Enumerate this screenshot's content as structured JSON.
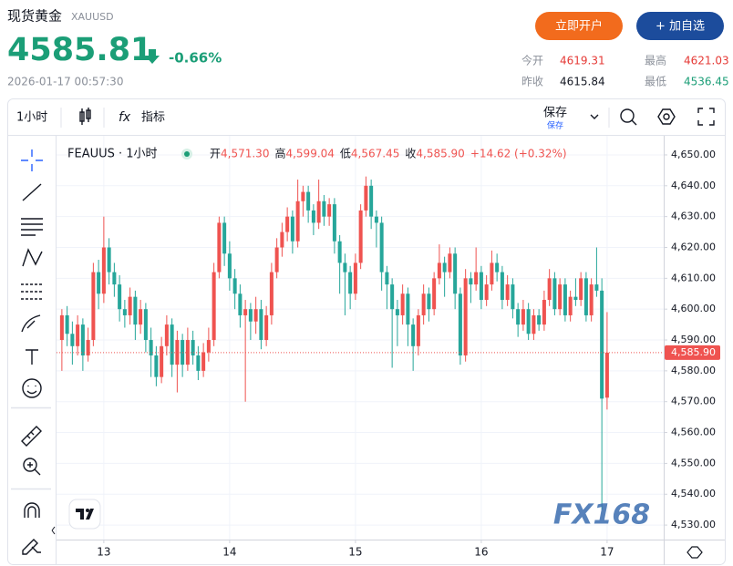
{
  "header": {
    "title": "现货黄金",
    "code": "XAUUSD",
    "price": "4585.81",
    "change": "-0.66%",
    "datetime": "2026-01-17 00:57:30",
    "open_account": "立即开户",
    "add_watch": "+ 加自选",
    "stats": [
      {
        "label": "今开",
        "value": "4619.31"
      },
      {
        "label": "最高",
        "value": "4621.03"
      },
      {
        "label": "昨收",
        "value": "4615.84"
      },
      {
        "label": "最低",
        "value": "4536.45"
      }
    ]
  },
  "toolbar": {
    "interval": "1小时",
    "indicators": "指标",
    "save": "保存",
    "save_sub": "保存"
  },
  "chart_data": {
    "type": "candlestick",
    "legend": {
      "symbol": "FEAUUS · 1小时",
      "items": [
        {
          "label": "开",
          "value": "4,571.30"
        },
        {
          "label": "高",
          "value": "4,599.04"
        },
        {
          "label": "低",
          "value": "4,567.45"
        },
        {
          "label": "收",
          "value": "4,585.90"
        }
      ],
      "change": "+14.62 (+0.32%)"
    },
    "up_color": "#ef5350",
    "down_color": "#26a69a",
    "x": [
      -8,
      -7,
      -6,
      -5,
      -4,
      -3,
      -2,
      -1,
      0,
      1,
      2,
      3,
      4,
      5,
      6,
      7,
      8,
      9,
      10,
      11,
      12,
      13,
      14,
      15,
      16,
      17,
      18,
      19,
      20,
      21,
      22,
      23,
      24,
      25,
      26,
      27,
      28,
      29,
      30,
      31,
      32,
      33,
      34,
      35,
      36,
      37,
      38,
      39,
      40,
      41,
      42,
      43,
      44,
      45,
      46,
      47,
      48,
      49,
      50,
      51,
      52,
      53,
      54,
      55,
      56,
      57,
      58,
      59,
      60,
      61,
      62,
      63,
      64,
      65,
      66,
      67,
      68,
      69,
      70,
      71,
      72,
      73,
      74,
      75,
      76,
      77,
      78,
      79,
      80,
      81,
      82,
      83,
      84,
      85,
      86,
      87,
      88,
      89,
      90,
      91,
      92,
      93,
      94,
      95,
      96
    ],
    "open": [
      4590,
      4598,
      4592,
      4588,
      4595,
      4585,
      4590,
      4612,
      4605,
      4620,
      4612,
      4608,
      4600,
      4598,
      4604,
      4595,
      4600,
      4590,
      4585,
      4578,
      4588,
      4595,
      4582,
      4590,
      4582,
      4590,
      4585,
      4580,
      4586,
      4590,
      4612,
      4628,
      4618,
      4610,
      4605,
      4598,
      4600,
      4596,
      4600,
      4590,
      4598,
      4612,
      4620,
      4625,
      4630,
      4622,
      4635,
      4638,
      4632,
      4628,
      4635,
      4630,
      4634,
      4622,
      4615,
      4612,
      4605,
      4615,
      4632,
      4640,
      4630,
      4628,
      4612,
      4608,
      4600,
      4598,
      4605,
      4595,
      4588,
      4598,
      4605,
      4600,
      4610,
      4615,
      4612,
      4618,
      4605,
      4585,
      4610,
      4608,
      4612,
      4603,
      4608,
      4615,
      4612,
      4603,
      4608,
      4600,
      4595,
      4600,
      4592,
      4598,
      4595,
      4603,
      4610,
      4600,
      4608,
      4598,
      4604,
      4603,
      4610,
      4598,
      4608,
      4606,
      4571.3
    ],
    "high": [
      4600,
      4601,
      4596,
      4598,
      4597,
      4594,
      4615,
      4616,
      4630,
      4623,
      4615,
      4611,
      4603,
      4607,
      4606,
      4603,
      4602,
      4594,
      4588,
      4591,
      4598,
      4597,
      4593,
      4592,
      4594,
      4593,
      4588,
      4589,
      4594,
      4615,
      4630,
      4630,
      4622,
      4613,
      4608,
      4603,
      4602,
      4604,
      4603,
      4601,
      4615,
      4623,
      4628,
      4633,
      4632,
      4642,
      4640,
      4640,
      4634,
      4642,
      4637,
      4636,
      4636,
      4624,
      4618,
      4614,
      4618,
      4634,
      4643,
      4642,
      4632,
      4630,
      4614,
      4610,
      4603,
      4608,
      4607,
      4597,
      4600,
      4608,
      4607,
      4612,
      4621,
      4617,
      4620,
      4620,
      4607,
      4613,
      4612,
      4620,
      4614,
      4611,
      4619,
      4618,
      4614,
      4611,
      4610,
      4602,
      4603,
      4602,
      4600,
      4600,
      4606,
      4613,
      4612,
      4610,
      4610,
      4606,
      4610,
      4612,
      4612,
      4610,
      4620,
      4610,
      4599.04
    ],
    "low": [
      4580,
      4588,
      4582,
      4585,
      4580,
      4583,
      4588,
      4600,
      4602,
      4608,
      4604,
      4596,
      4594,
      4595,
      4590,
      4592,
      4586,
      4578,
      4575,
      4576,
      4585,
      4578,
      4573,
      4578,
      4580,
      4582,
      4577,
      4578,
      4583,
      4588,
      4610,
      4614,
      4606,
      4600,
      4594,
      4570,
      4590,
      4592,
      4587,
      4588,
      4595,
      4610,
      4617,
      4622,
      4618,
      4620,
      4630,
      4628,
      4624,
      4626,
      4627,
      4627,
      4618,
      4605,
      4598,
      4600,
      4603,
      4613,
      4630,
      4626,
      4620,
      4606,
      4600,
      4581,
      4588,
      4595,
      4588,
      4580,
      4585,
      4595,
      4596,
      4598,
      4608,
      4604,
      4610,
      4600,
      4582,
      4583,
      4602,
      4606,
      4600,
      4601,
      4606,
      4609,
      4600,
      4601,
      4597,
      4591,
      4593,
      4590,
      4590,
      4593,
      4593,
      4601,
      4598,
      4598,
      4596,
      4596,
      4601,
      4601,
      4596,
      4596,
      4604,
      4535,
      4567.45
    ],
    "close": [
      4598,
      4592,
      4588,
      4595,
      4585,
      4590,
      4612,
      4605,
      4620,
      4612,
      4608,
      4600,
      4598,
      4604,
      4595,
      4600,
      4590,
      4585,
      4578,
      4588,
      4595,
      4582,
      4590,
      4582,
      4590,
      4585,
      4580,
      4586,
      4590,
      4612,
      4628,
      4618,
      4610,
      4605,
      4598,
      4600,
      4596,
      4600,
      4590,
      4598,
      4612,
      4620,
      4625,
      4630,
      4622,
      4635,
      4638,
      4632,
      4628,
      4635,
      4630,
      4634,
      4622,
      4615,
      4612,
      4605,
      4615,
      4632,
      4640,
      4630,
      4628,
      4612,
      4608,
      4600,
      4598,
      4605,
      4595,
      4588,
      4598,
      4605,
      4600,
      4610,
      4615,
      4612,
      4618,
      4605,
      4585,
      4610,
      4608,
      4612,
      4603,
      4608,
      4615,
      4612,
      4603,
      4608,
      4600,
      4595,
      4600,
      4592,
      4598,
      4595,
      4603,
      4610,
      4600,
      4608,
      4598,
      4604,
      4603,
      4610,
      4598,
      4608,
      4606,
      4571,
      4585.9
    ],
    "xlim": [
      -8.5,
      106.8
    ],
    "xticks": [
      {
        "value": 0,
        "label": "13"
      },
      {
        "value": 24,
        "label": "14"
      },
      {
        "value": 48,
        "label": "15"
      },
      {
        "value": 72,
        "label": "16"
      },
      {
        "value": 96,
        "label": "17"
      }
    ],
    "ylim": [
      4525.3,
      4655.9
    ],
    "yticks": [
      {
        "value": 4530,
        "label": "4,530.00"
      },
      {
        "value": 4540,
        "label": "4,540.00"
      },
      {
        "value": 4550,
        "label": "4,550.00"
      },
      {
        "value": 4560,
        "label": "4,560.00"
      },
      {
        "value": 4570,
        "label": "4,570.00"
      },
      {
        "value": 4580,
        "label": "4,580.00"
      },
      {
        "value": 4590,
        "label": "4,590.00"
      },
      {
        "value": 4600,
        "label": "4,600.00"
      },
      {
        "value": 4610,
        "label": "4,610.00"
      },
      {
        "value": 4620,
        "label": "4,620.00"
      },
      {
        "value": 4630,
        "label": "4,630.00"
      },
      {
        "value": 4640,
        "label": "4,640.00"
      },
      {
        "value": 4650,
        "label": "4,650.00"
      }
    ],
    "last_price": {
      "value": 4585.9,
      "label": "4,585.90"
    },
    "grid": true,
    "watermark": "FX168"
  }
}
